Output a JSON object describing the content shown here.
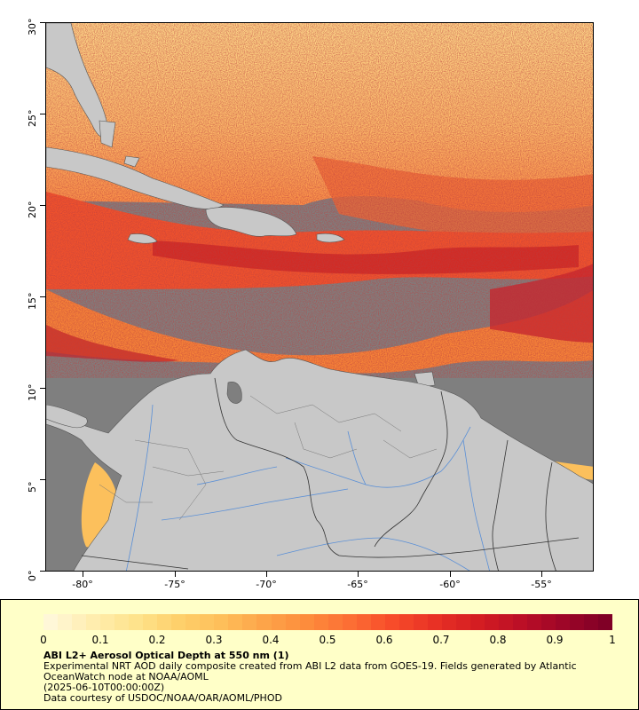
{
  "map": {
    "title": "ABI L2+ Aerosol Optical Depth at 550 nm (1)",
    "lat_labels": [
      "30°",
      "25°",
      "20°",
      "15°",
      "10°",
      "5°",
      "0°"
    ],
    "lon_labels": [
      "-80°",
      "-75°",
      "-70°",
      "-65°",
      "-60°",
      "-55°"
    ],
    "lat_range": [
      0,
      30
    ],
    "lon_range": [
      -82.3,
      -52.4
    ],
    "colors": {
      "nodata": "#7f7f7f",
      "land": "#c8c8c8",
      "rivers": "#5a8fd6",
      "borders": "#555555"
    }
  },
  "legend": {
    "ticks": [
      "0",
      "0.1",
      "0.2",
      "0.3",
      "0.4",
      "0.5",
      "0.6",
      "0.7",
      "0.8",
      "0.9",
      "1"
    ],
    "range": [
      0,
      1
    ],
    "colorbar_colors": [
      "#fff7d8",
      "#ffedae",
      "#fee38c",
      "#fed06b",
      "#febf5a",
      "#fda449",
      "#fd8c3c",
      "#fc6e34",
      "#f74c2a",
      "#e83125",
      "#d41d22",
      "#bc0f26",
      "#9e0628",
      "#800026"
    ],
    "line1": "ABI L2+ Aerosol Optical Depth at 550 nm (1)",
    "line2": "Experimental NRT AOD daily composite created from ABI L2 data from GOES-19. Fields generated by Atlantic OceanWatch node at NOAA/AOML",
    "line3": "(2025-06-10T00:00:00Z)",
    "line4": "Data courtesy of USDOC/NOAA/OAR/AOML/PHOD"
  }
}
